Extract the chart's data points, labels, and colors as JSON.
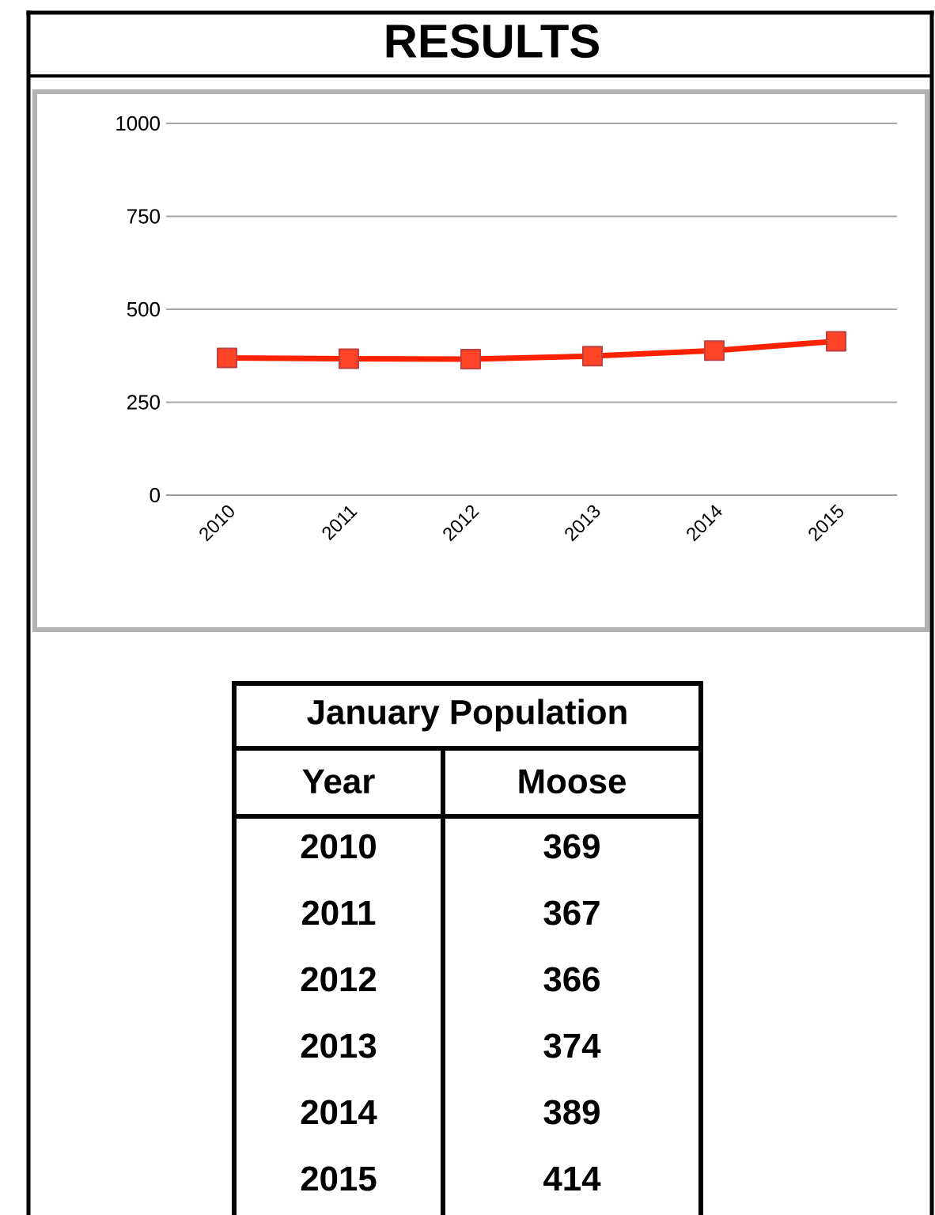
{
  "chart_data": {
    "type": "line",
    "title": "RESULTS",
    "categories": [
      "2010",
      "2011",
      "2012",
      "2013",
      "2014",
      "2015"
    ],
    "values": [
      369,
      367,
      366,
      374,
      389,
      414
    ],
    "color": "#ff2200",
    "marker": "square",
    "ylim": [
      0,
      1000
    ],
    "yticks": [
      0,
      250,
      500,
      750,
      1000
    ],
    "grid": "y",
    "annotations": [
      "January Population",
      "Year",
      "Moose",
      "369",
      "367",
      "366",
      "374",
      "389",
      "414"
    ]
  }
}
